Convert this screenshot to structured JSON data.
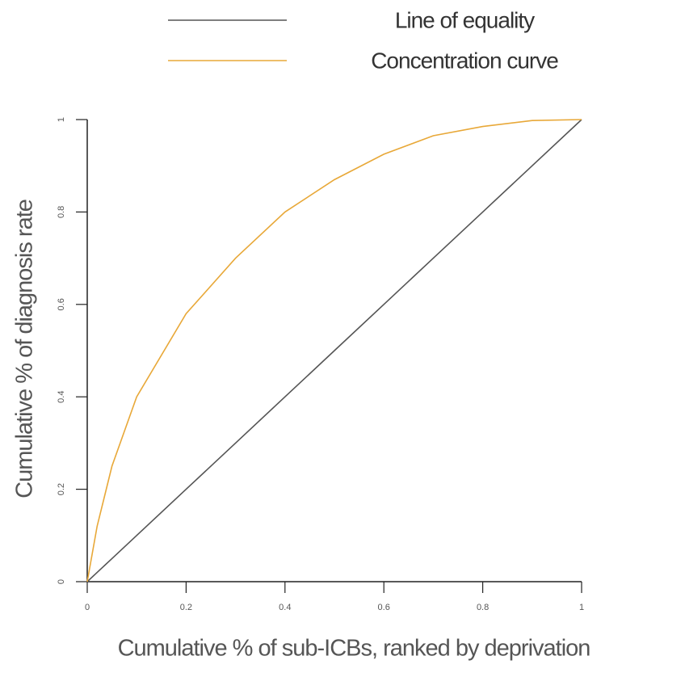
{
  "chart_data": {
    "type": "line",
    "x": [
      0,
      0.02,
      0.05,
      0.1,
      0.2,
      0.3,
      0.4,
      0.5,
      0.6,
      0.7,
      0.8,
      0.9,
      1
    ],
    "series": [
      {
        "name": "Line of equality",
        "color": "#555555",
        "values": [
          0,
          0.02,
          0.05,
          0.1,
          0.2,
          0.3,
          0.4,
          0.5,
          0.6,
          0.7,
          0.8,
          0.9,
          1
        ]
      },
      {
        "name": "Concentration curve",
        "color": "#e8a838",
        "values": [
          0,
          0.12,
          0.25,
          0.4,
          0.58,
          0.7,
          0.8,
          0.87,
          0.925,
          0.965,
          0.985,
          0.998,
          1
        ]
      }
    ],
    "xlabel": "Cumulative % of sub-ICBs, ranked by deprivation",
    "ylabel": "Cumulative % of diagnosis rate",
    "xlim": [
      0,
      1
    ],
    "ylim": [
      0,
      1
    ],
    "xticks": [
      0,
      0.2,
      0.4,
      0.6,
      0.8,
      1
    ],
    "yticks": [
      0,
      0.2,
      0.4,
      0.6,
      0.8,
      1
    ]
  }
}
